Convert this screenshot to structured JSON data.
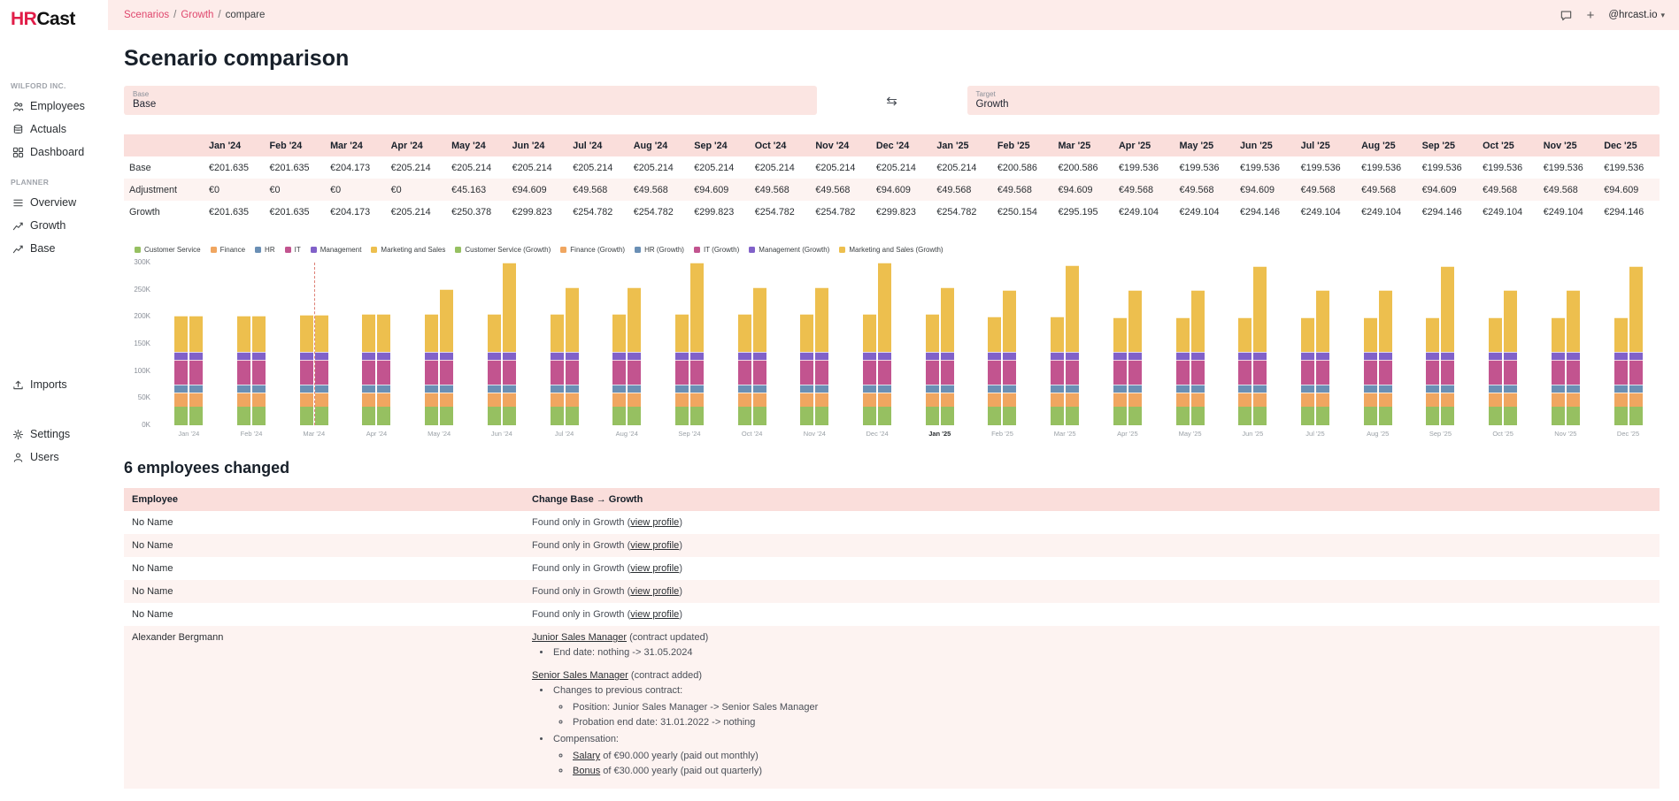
{
  "brand": {
    "logo_accent": "HR",
    "logo_rest": "Cast"
  },
  "theme": {
    "accent": "#e11d48",
    "topbar_bg": "#fdecea",
    "table_header_bg": "#fadedb",
    "row_alt_bg": "#fdf3f1"
  },
  "topbar": {
    "breadcrumb": [
      "Scenarios",
      "Growth",
      "compare"
    ],
    "plus_label": "+",
    "account": "@hrcast.io"
  },
  "sidebar": {
    "company_label": "WILFORD INC.",
    "company_items": [
      {
        "label": "Employees",
        "icon": "people-icon"
      },
      {
        "label": "Actuals",
        "icon": "coins-icon"
      },
      {
        "label": "Dashboard",
        "icon": "dashboard-icon"
      }
    ],
    "planner_label": "PLANNER",
    "planner_items": [
      {
        "label": "Overview",
        "icon": "list-icon"
      },
      {
        "label": "Growth",
        "icon": "chart-icon"
      },
      {
        "label": "Base",
        "icon": "chart-icon"
      }
    ],
    "imports_item": {
      "label": "Imports",
      "icon": "upload-icon"
    },
    "footer_items": [
      {
        "label": "Settings",
        "icon": "gear-icon"
      },
      {
        "label": "Users",
        "icon": "user-icon"
      }
    ]
  },
  "page": {
    "title": "Scenario comparison",
    "base": {
      "label": "Base",
      "value": "Base"
    },
    "target": {
      "label": "Target",
      "value": "Growth"
    }
  },
  "comparison_table": {
    "months": [
      "Jan '24",
      "Feb '24",
      "Mar '24",
      "Apr '24",
      "May '24",
      "Jun '24",
      "Jul '24",
      "Aug '24",
      "Sep '24",
      "Oct '24",
      "Nov '24",
      "Dec '24",
      "Jan '25",
      "Feb '25",
      "Mar '25",
      "Apr '25",
      "May '25",
      "Jun '25",
      "Jul '25",
      "Aug '25",
      "Sep '25",
      "Oct '25",
      "Nov '25",
      "Dec '25"
    ],
    "rows": [
      {
        "label": "Base",
        "values": [
          "€201.635",
          "€201.635",
          "€204.173",
          "€205.214",
          "€205.214",
          "€205.214",
          "€205.214",
          "€205.214",
          "€205.214",
          "€205.214",
          "€205.214",
          "€205.214",
          "€205.214",
          "€200.586",
          "€200.586",
          "€199.536",
          "€199.536",
          "€199.536",
          "€199.536",
          "€199.536",
          "€199.536",
          "€199.536",
          "€199.536",
          "€199.536"
        ]
      },
      {
        "label": "Adjustment",
        "values": [
          "€0",
          "€0",
          "€0",
          "€0",
          "€45.163",
          "€94.609",
          "€49.568",
          "€49.568",
          "€94.609",
          "€49.568",
          "€49.568",
          "€94.609",
          "€49.568",
          "€49.568",
          "€94.609",
          "€49.568",
          "€49.568",
          "€94.609",
          "€49.568",
          "€49.568",
          "€94.609",
          "€49.568",
          "€49.568",
          "€94.609"
        ]
      },
      {
        "label": "Growth",
        "values": [
          "€201.635",
          "€201.635",
          "€204.173",
          "€205.214",
          "€250.378",
          "€299.823",
          "€254.782",
          "€254.782",
          "€299.823",
          "€254.782",
          "€254.782",
          "€299.823",
          "€254.782",
          "€250.154",
          "€295.195",
          "€249.104",
          "€249.104",
          "€294.146",
          "€249.104",
          "€249.104",
          "€294.146",
          "€249.104",
          "€249.104",
          "€294.146"
        ]
      }
    ]
  },
  "chart_data": {
    "type": "bar",
    "stacked": true,
    "unit": "EUR thousands",
    "categories": [
      "Jan '24",
      "Feb '24",
      "Mar '24",
      "Apr '24",
      "May '24",
      "Jun '24",
      "Jul '24",
      "Aug '24",
      "Sep '24",
      "Oct '24",
      "Nov '24",
      "Dec '24",
      "Jan '25",
      "Feb '25",
      "Mar '25",
      "Apr '25",
      "May '25",
      "Jun '25",
      "Jul '25",
      "Aug '25",
      "Sep '25",
      "Oct '25",
      "Nov '25",
      "Dec '25"
    ],
    "emphasized_category": "Jan '25",
    "departments": [
      "Customer Service",
      "Finance",
      "HR",
      "IT",
      "Management",
      "Marketing and Sales"
    ],
    "colors": [
      "#96c061",
      "#f0a660",
      "#6a8fb5",
      "#c2548f",
      "#8161c9",
      "#edbf4e"
    ],
    "legend": [
      "Customer Service",
      "Finance",
      "HR",
      "IT",
      "Management",
      "Marketing and Sales",
      "Customer Service (Growth)",
      "Finance (Growth)",
      "HR (Growth)",
      "IT (Growth)",
      "Management (Growth)",
      "Marketing and Sales (Growth)"
    ],
    "yticks": [
      "0K",
      "50K",
      "100K",
      "150K",
      "200K",
      "250K",
      "300K"
    ],
    "ymax": 300,
    "today_marker_index": 2,
    "base_totals": [
      201.6,
      201.6,
      204.2,
      205.2,
      205.2,
      205.2,
      205.2,
      205.2,
      205.2,
      205.2,
      205.2,
      205.2,
      205.2,
      200.6,
      200.6,
      199.5,
      199.5,
      199.5,
      199.5,
      199.5,
      199.5,
      199.5,
      199.5,
      199.5
    ],
    "growth_totals": [
      201.6,
      201.6,
      204.2,
      205.2,
      250.4,
      299.8,
      254.8,
      254.8,
      299.8,
      254.8,
      254.8,
      299.8,
      254.8,
      250.2,
      295.2,
      249.1,
      249.1,
      294.1,
      249.1,
      249.1,
      294.1,
      249.1,
      249.1,
      294.1
    ],
    "base_stacks": [
      [
        35,
        25,
        15,
        45,
        15,
        66.6
      ],
      [
        35,
        25,
        15,
        45,
        15,
        66.6
      ],
      [
        35,
        25,
        15,
        45,
        15,
        69.2
      ],
      [
        35,
        25,
        15,
        45,
        15,
        70.2
      ],
      [
        35,
        25,
        15,
        45,
        15,
        70.2
      ],
      [
        35,
        25,
        15,
        45,
        15,
        70.2
      ],
      [
        35,
        25,
        15,
        45,
        15,
        70.2
      ],
      [
        35,
        25,
        15,
        45,
        15,
        70.2
      ],
      [
        35,
        25,
        15,
        45,
        15,
        70.2
      ],
      [
        35,
        25,
        15,
        45,
        15,
        70.2
      ],
      [
        35,
        25,
        15,
        45,
        15,
        70.2
      ],
      [
        35,
        25,
        15,
        45,
        15,
        70.2
      ],
      [
        35,
        25,
        15,
        45,
        15,
        70.2
      ],
      [
        35,
        25,
        15,
        45,
        15,
        65.6
      ],
      [
        35,
        25,
        15,
        45,
        15,
        65.6
      ],
      [
        35,
        25,
        15,
        45,
        15,
        64.5
      ],
      [
        35,
        25,
        15,
        45,
        15,
        64.5
      ],
      [
        35,
        25,
        15,
        45,
        15,
        64.5
      ],
      [
        35,
        25,
        15,
        45,
        15,
        64.5
      ],
      [
        35,
        25,
        15,
        45,
        15,
        64.5
      ],
      [
        35,
        25,
        15,
        45,
        15,
        64.5
      ],
      [
        35,
        25,
        15,
        45,
        15,
        64.5
      ],
      [
        35,
        25,
        15,
        45,
        15,
        64.5
      ],
      [
        35,
        25,
        15,
        45,
        15,
        64.5
      ]
    ],
    "growth_stacks": [
      [
        35,
        25,
        15,
        45,
        15,
        66.6
      ],
      [
        35,
        25,
        15,
        45,
        15,
        66.6
      ],
      [
        35,
        25,
        15,
        45,
        15,
        69.2
      ],
      [
        35,
        25,
        15,
        45,
        15,
        70.2
      ],
      [
        35,
        25,
        15,
        45,
        15,
        115.4
      ],
      [
        35,
        25,
        15,
        45,
        15,
        164.8
      ],
      [
        35,
        25,
        15,
        45,
        15,
        119.8
      ],
      [
        35,
        25,
        15,
        45,
        15,
        119.8
      ],
      [
        35,
        25,
        15,
        45,
        15,
        164.8
      ],
      [
        35,
        25,
        15,
        45,
        15,
        119.8
      ],
      [
        35,
        25,
        15,
        45,
        15,
        119.8
      ],
      [
        35,
        25,
        15,
        45,
        15,
        164.8
      ],
      [
        35,
        25,
        15,
        45,
        15,
        119.8
      ],
      [
        35,
        25,
        15,
        45,
        15,
        115.2
      ],
      [
        35,
        25,
        15,
        45,
        15,
        160.2
      ],
      [
        35,
        25,
        15,
        45,
        15,
        114.1
      ],
      [
        35,
        25,
        15,
        45,
        15,
        114.1
      ],
      [
        35,
        25,
        15,
        45,
        15,
        159.1
      ],
      [
        35,
        25,
        15,
        45,
        15,
        114.1
      ],
      [
        35,
        25,
        15,
        45,
        15,
        114.1
      ],
      [
        35,
        25,
        15,
        45,
        15,
        159.1
      ],
      [
        35,
        25,
        15,
        45,
        15,
        114.1
      ],
      [
        35,
        25,
        15,
        45,
        15,
        114.1
      ],
      [
        35,
        25,
        15,
        45,
        15,
        159.1
      ]
    ]
  },
  "employees_changed": {
    "title": "6 employees changed",
    "columns": [
      "Employee",
      "Change Base → Growth"
    ],
    "simple_rows": [
      {
        "employee": "No Name",
        "prefix": "Found only in Growth (",
        "link": "view profile",
        "suffix": ")"
      },
      {
        "employee": "No Name",
        "prefix": "Found only in Growth (",
        "link": "view profile",
        "suffix": ")"
      },
      {
        "employee": "No Name",
        "prefix": "Found only in Growth (",
        "link": "view profile",
        "suffix": ")"
      },
      {
        "employee": "No Name",
        "prefix": "Found only in Growth (",
        "link": "view profile",
        "suffix": ")"
      },
      {
        "employee": "No Name",
        "prefix": "Found only in Growth (",
        "link": "view profile",
        "suffix": ")"
      }
    ],
    "detailed_row": {
      "employee": "Alexander Bergmann",
      "blocks": [
        {
          "title_link": "Junior Sales Manager",
          "title_note": " (contract updated)",
          "items": [
            {
              "text": "End date: nothing -> 31.05.2024"
            }
          ]
        },
        {
          "title_link": "Senior Sales Manager",
          "title_note": " (contract added)",
          "items": [
            {
              "text": "Changes to previous contract:",
              "sub": [
                {
                  "text": "Position: Junior Sales Manager -> Senior Sales Manager"
                },
                {
                  "text": "Probation end date: 31.01.2022 -> nothing"
                }
              ]
            },
            {
              "text": "Compensation:",
              "sub": [
                {
                  "link": "Salary",
                  "text": " of €90.000 yearly (paid out monthly)"
                },
                {
                  "link": "Bonus",
                  "text": " of €30.000 yearly (paid out quarterly)"
                }
              ]
            }
          ]
        }
      ]
    }
  }
}
